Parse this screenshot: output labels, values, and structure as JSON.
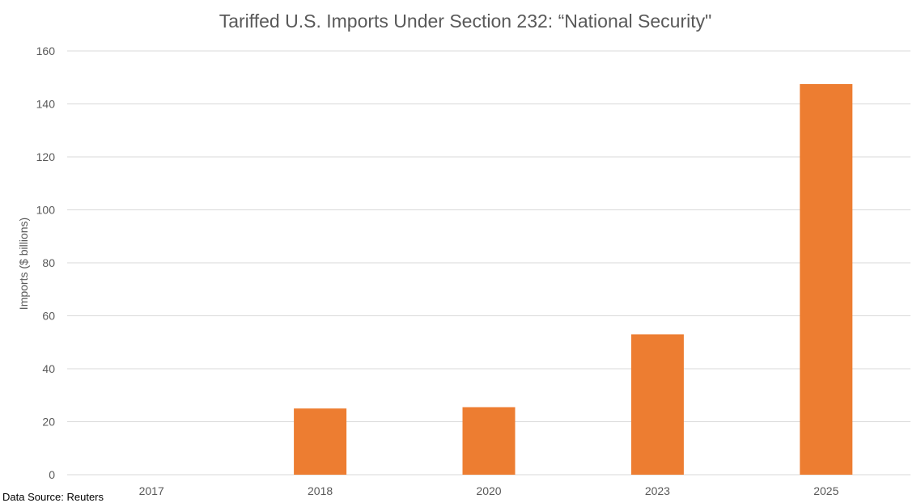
{
  "chart_data": {
    "type": "bar",
    "title": "Tariffed U.S. Imports Under Section 232: “National Security\"",
    "xlabel": "",
    "ylabel": "Imports ($ billions)",
    "categories": [
      "2017",
      "2018",
      "2020",
      "2023",
      "2025"
    ],
    "series": [
      {
        "name": "Imports",
        "values": [
          0,
          25,
          25.5,
          53,
          147.5
        ]
      }
    ],
    "ylim": [
      0,
      160
    ],
    "yticks": [
      0,
      20,
      40,
      60,
      80,
      100,
      120,
      140,
      160
    ],
    "grid": true,
    "legend": "none",
    "bar_color": "#ED7D31",
    "grid_color": "#D9D9D9",
    "text_color": "#595959"
  },
  "source_note": "Data Source: Reuters"
}
